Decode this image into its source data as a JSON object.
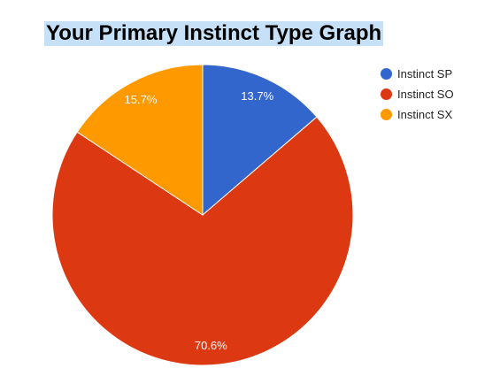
{
  "chart_data": {
    "type": "pie",
    "title": "Your Primary Instinct Type Graph",
    "categories": [
      "Instinct SP",
      "Instinct SO",
      "Instinct SX"
    ],
    "values": [
      13.7,
      70.6,
      15.7
    ],
    "labels": [
      "13.7%",
      "70.6%",
      "15.7%"
    ],
    "colors": [
      "#3366cc",
      "#dc3912",
      "#ff9900"
    ],
    "legend_position": "right"
  }
}
